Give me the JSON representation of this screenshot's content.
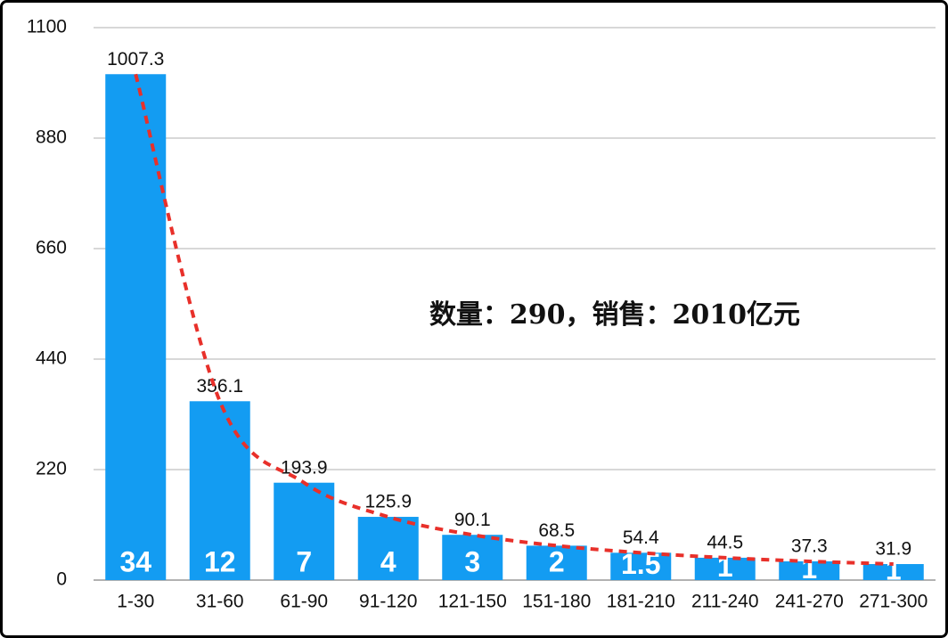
{
  "chart_data": {
    "type": "bar",
    "annotation": "数量：290，销售：2010亿元",
    "categories": [
      "1-30",
      "31-60",
      "61-90",
      "91-120",
      "121-150",
      "151-180",
      "181-210",
      "211-240",
      "241-270",
      "271-300"
    ],
    "values": [
      1007.3,
      356.1,
      193.9,
      125.9,
      90.1,
      68.5,
      54.4,
      44.5,
      37.3,
      31.9
    ],
    "inner_labels": [
      34,
      12,
      7,
      4,
      3,
      2,
      1.5,
      1,
      1,
      1
    ],
    "color": "#139cf2",
    "trendline": true,
    "trendline_color": "#e8302a",
    "ylim": [
      0,
      1100
    ],
    "yticks": [
      0,
      220,
      440,
      660,
      880,
      1100
    ],
    "grid": true
  }
}
